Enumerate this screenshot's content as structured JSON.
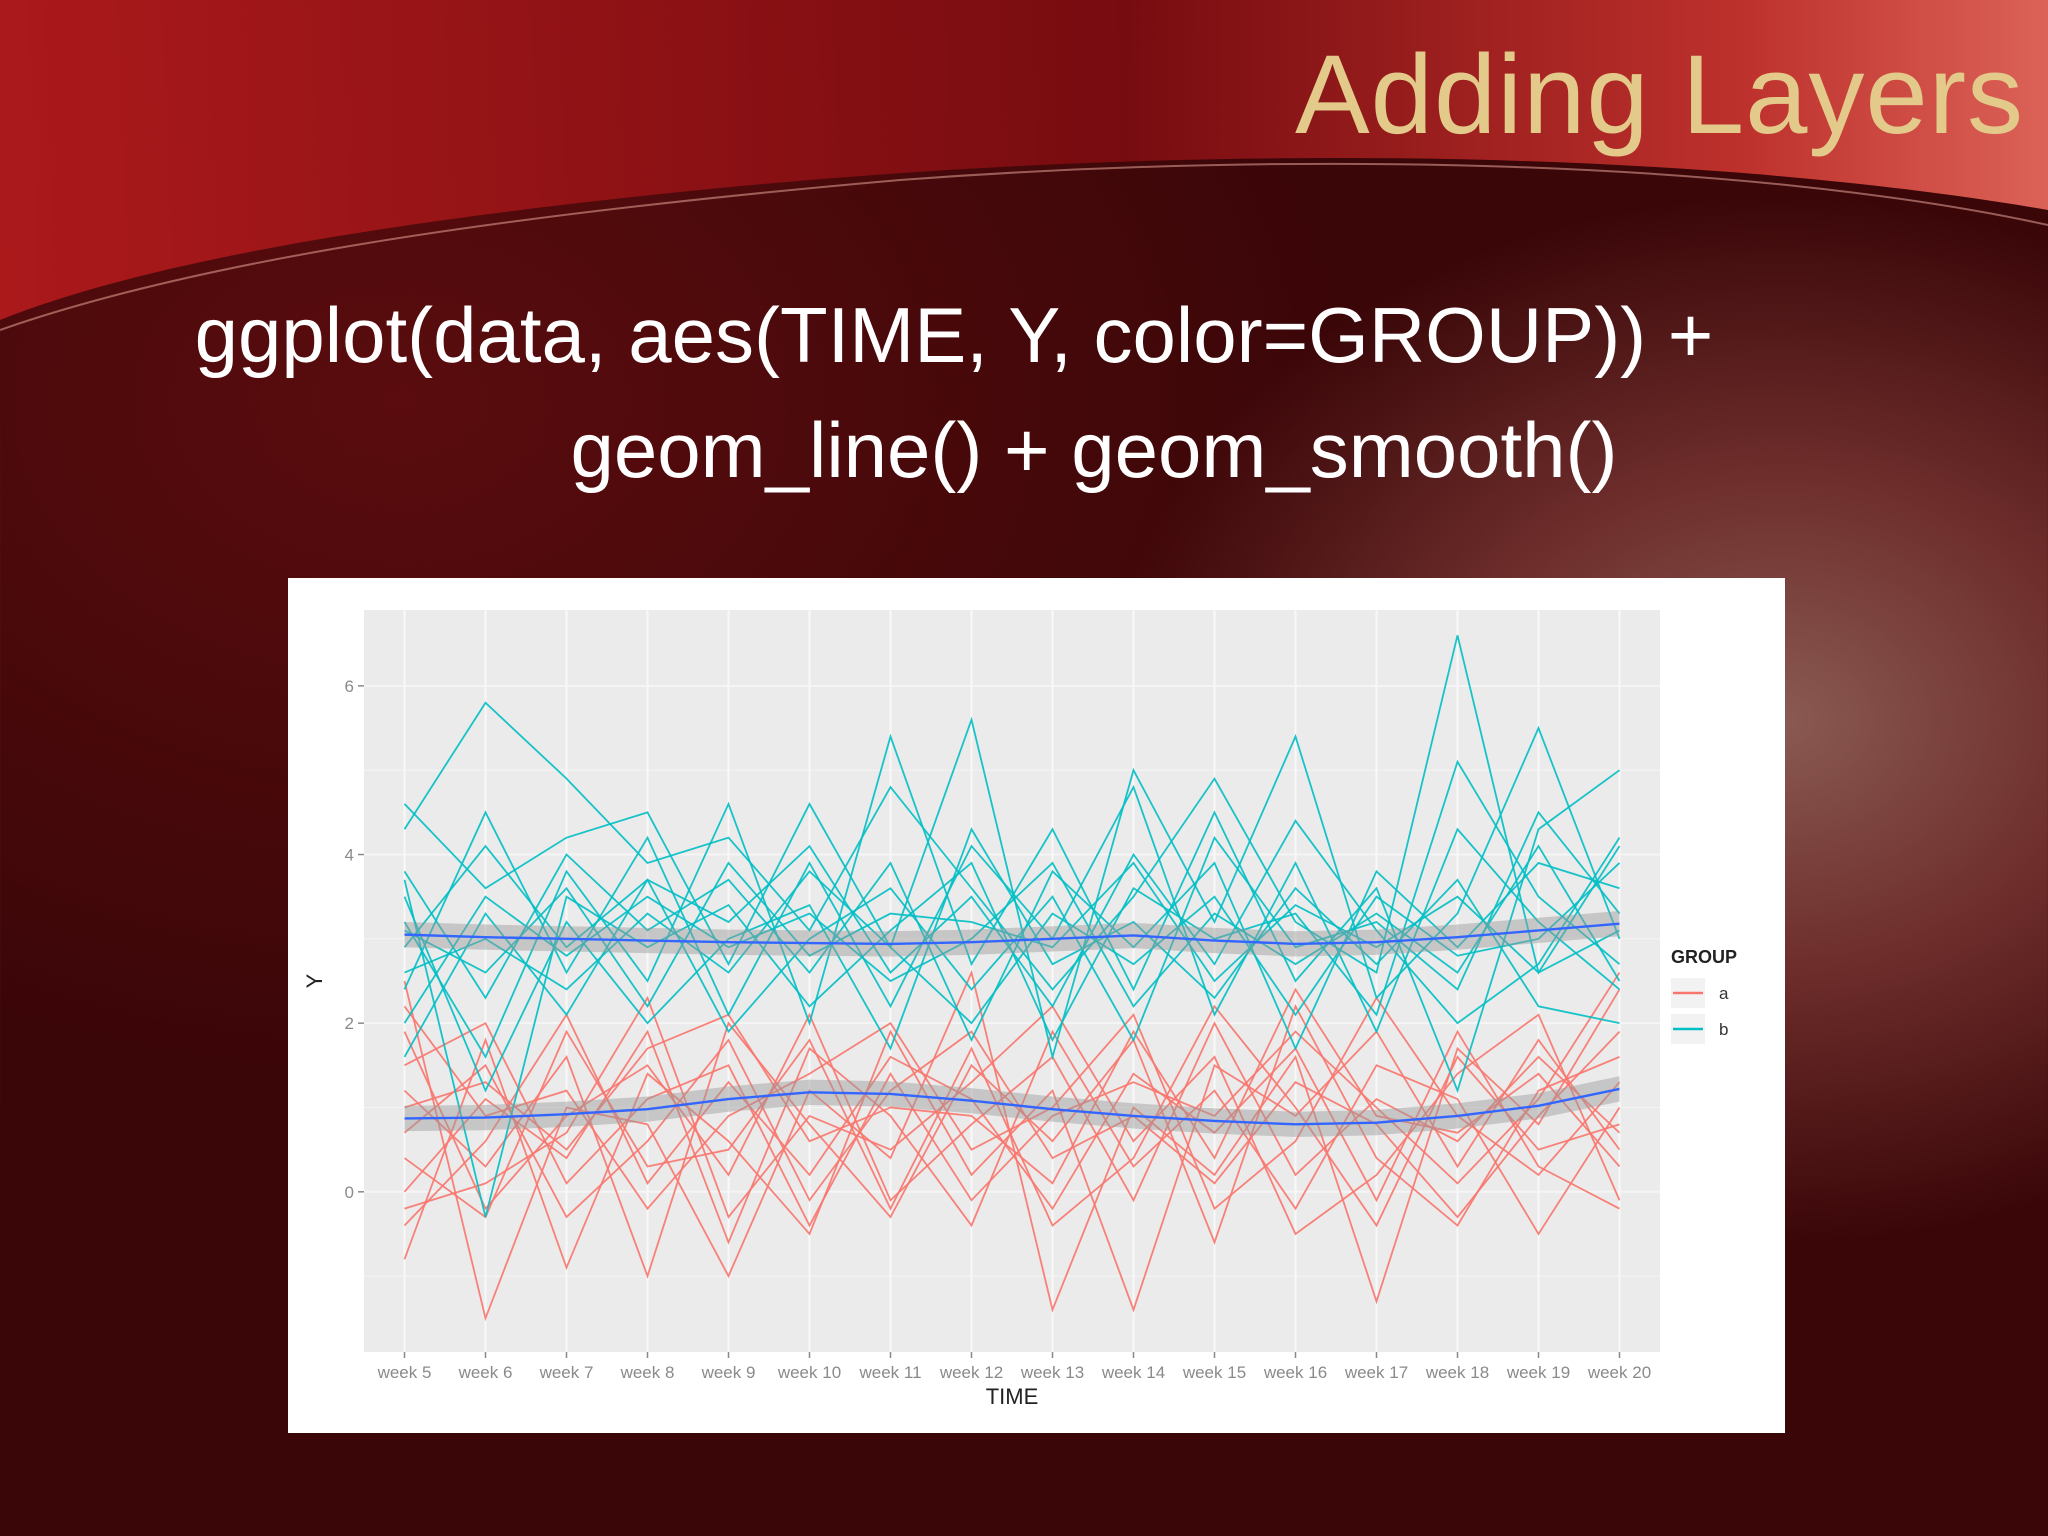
{
  "slide": {
    "title": "Adding Layers",
    "code_line1": "ggplot(data, aes(TIME, Y, color=GROUP)) +",
    "code_line2": "geom_line() + geom_smooth()"
  },
  "colors": {
    "title": "#e3c98a",
    "group_a": "#f8766d",
    "group_b": "#00bfc4",
    "smooth": "#3366ff",
    "panel": "#ebebeb"
  },
  "chart_data": {
    "type": "line",
    "title": "",
    "xlabel": "TIME",
    "ylabel": "Y",
    "ylim": [
      -1.9,
      6.9
    ],
    "yticks": [
      0,
      2,
      4,
      6
    ],
    "grid": true,
    "legend_position": "right",
    "legend_title": "GROUP",
    "categories": [
      "week 5",
      "week 6",
      "week 7",
      "week 8",
      "week 9",
      "week 10",
      "week 11",
      "week 12",
      "week 13",
      "week 14",
      "week 15",
      "week 16",
      "week 17",
      "week 18",
      "week 19",
      "week 20"
    ],
    "groups": [
      {
        "name": "a",
        "color": "#f8766d",
        "lines": [
          [
            2.5,
            -1.5,
            1.0,
            0.8,
            -1.0,
            1.2,
            0.4,
            2.6,
            -1.4,
            1.0,
            0.2,
            1.6,
            -1.3,
            1.7,
            0.8,
            2.4
          ],
          [
            -0.8,
            1.8,
            -0.9,
            1.4,
            0.6,
            -0.5,
            1.9,
            0.2,
            1.2,
            -1.4,
            1.5,
            0.9,
            1.9,
            0.3,
            1.8,
            0.5
          ],
          [
            1.2,
            0.3,
            1.6,
            -1.0,
            2.0,
            0.8,
            -0.3,
            1.5,
            0.6,
            1.8,
            -0.6,
            2.2,
            0.4,
            -0.4,
            1.2,
            1.6
          ],
          [
            0.0,
            1.1,
            0.4,
            1.9,
            -0.6,
            1.7,
            0.9,
            -0.4,
            1.9,
            0.3,
            1.2,
            -0.2,
            1.5,
            1.1,
            -0.5,
            1.0
          ],
          [
            -0.4,
            0.6,
            2.1,
            0.1,
            1.3,
            0.2,
            1.6,
            1.1,
            -0.2,
            1.4,
            0.7,
            1.7,
            -0.1,
            1.9,
            0.3,
            -0.2
          ],
          [
            1.9,
            -0.2,
            0.9,
            1.5,
            0.2,
            2.1,
            -0.1,
            0.8,
            1.6,
            -0.1,
            2.0,
            0.2,
            1.1,
            0.6,
            1.6,
            0.7
          ],
          [
            0.7,
            1.5,
            -0.3,
            0.6,
            1.8,
            -0.1,
            1.2,
            1.9,
            0.4,
            0.9,
            0.1,
            1.3,
            0.8,
            -0.3,
            0.9,
            1.9
          ],
          [
            2.2,
            0.9,
            1.2,
            -0.2,
            0.9,
            1.4,
            2.0,
            0.5,
            1.0,
            2.1,
            -0.2,
            0.6,
            2.3,
            0.9,
            0.2,
            1.3
          ],
          [
            -0.2,
            0.1,
            0.7,
            2.3,
            -0.3,
            0.9,
            0.5,
            1.3,
            2.2,
            0.6,
            1.6,
            -0.5,
            0.2,
            1.4,
            2.1,
            -0.1
          ],
          [
            1.5,
            2.0,
            0.1,
            1.1,
            1.5,
            -0.4,
            1.4,
            -0.1,
            0.9,
            1.3,
            0.9,
            1.9,
            1.0,
            0.1,
            1.1,
            2.6
          ],
          [
            0.4,
            -0.3,
            1.9,
            0.3,
            0.5,
            1.8,
            -0.2,
            1.7,
            -0.4,
            0.4,
            2.2,
            1.0,
            -0.4,
            1.6,
            0.5,
            0.8
          ],
          [
            1.0,
            1.3,
            0.5,
            1.7,
            2.1,
            0.6,
            1.0,
            0.9,
            0.1,
            1.9,
            0.4,
            2.4,
            0.9,
            0.7,
            1.4,
            0.3
          ]
        ]
      },
      {
        "name": "b",
        "color": "#00bfc4",
        "lines": [
          [
            4.3,
            5.8,
            4.9,
            3.9,
            4.2,
            3.1,
            4.8,
            3.6,
            2.4,
            3.5,
            4.9,
            3.2,
            2.6,
            6.6,
            2.6,
            4.1
          ],
          [
            4.6,
            3.6,
            4.2,
            4.5,
            2.7,
            4.6,
            2.9,
            5.6,
            1.6,
            5.0,
            3.2,
            5.4,
            2.3,
            3.3,
            5.5,
            3.0
          ],
          [
            3.2,
            1.6,
            3.8,
            2.5,
            4.6,
            2.0,
            5.4,
            2.7,
            4.3,
            2.4,
            4.5,
            2.5,
            3.6,
            1.2,
            4.3,
            5.0
          ],
          [
            2.4,
            4.5,
            2.6,
            4.2,
            2.1,
            3.9,
            2.2,
            4.1,
            3.0,
            4.8,
            2.1,
            3.9,
            1.9,
            4.3,
            3.2,
            2.4
          ],
          [
            3.8,
            2.3,
            4.0,
            3.1,
            3.7,
            2.6,
            3.9,
            1.8,
            3.8,
            2.9,
            3.9,
            1.7,
            3.8,
            2.9,
            3.9,
            3.6
          ],
          [
            1.6,
            3.3,
            2.1,
            3.7,
            3.2,
            4.1,
            2.6,
            3.5,
            2.2,
            4.0,
            2.7,
            4.4,
            3.1,
            2.0,
            2.7,
            4.2
          ],
          [
            3.5,
            1.2,
            3.2,
            2.0,
            3.0,
            3.4,
            1.7,
            4.3,
            2.7,
            3.2,
            2.3,
            3.6,
            2.7,
            3.7,
            2.2,
            2.0
          ],
          [
            2.9,
            4.1,
            2.9,
            3.7,
            1.9,
            3.0,
            3.6,
            2.4,
            3.5,
            1.8,
            4.2,
            2.9,
            3.2,
            2.4,
            4.5,
            3.3
          ],
          [
            3.7,
            -0.3,
            3.5,
            2.9,
            3.4,
            2.2,
            3.1,
            3.9,
            1.8,
            3.6,
            3.0,
            3.3,
            2.1,
            5.1,
            3.5,
            2.7
          ],
          [
            2.6,
            3.0,
            2.4,
            3.3,
            2.6,
            3.8,
            2.9,
            2.0,
            3.3,
            2.7,
            3.5,
            2.1,
            3.5,
            2.8,
            3.0,
            3.9
          ],
          [
            3.1,
            2.6,
            3.6,
            2.2,
            3.9,
            2.8,
            3.3,
            3.2,
            2.9,
            3.9,
            2.5,
            3.4,
            2.9,
            3.5,
            2.6,
            3.1
          ],
          [
            2.0,
            3.5,
            2.8,
            3.5,
            2.9,
            3.3,
            2.5,
            3.0,
            3.9,
            2.2,
            3.3,
            2.7,
            3.3,
            2.6,
            4.1,
            2.5
          ]
        ]
      }
    ],
    "smooth": {
      "a": [
        0.87,
        0.88,
        0.92,
        0.98,
        1.1,
        1.18,
        1.16,
        1.08,
        0.98,
        0.9,
        0.84,
        0.8,
        0.82,
        0.9,
        1.02,
        1.22
      ],
      "b": [
        3.05,
        3.02,
        3.0,
        2.98,
        2.96,
        2.95,
        2.94,
        2.96,
        3.0,
        3.04,
        2.98,
        2.94,
        2.96,
        3.02,
        3.1,
        3.18
      ],
      "se": 0.15
    }
  }
}
